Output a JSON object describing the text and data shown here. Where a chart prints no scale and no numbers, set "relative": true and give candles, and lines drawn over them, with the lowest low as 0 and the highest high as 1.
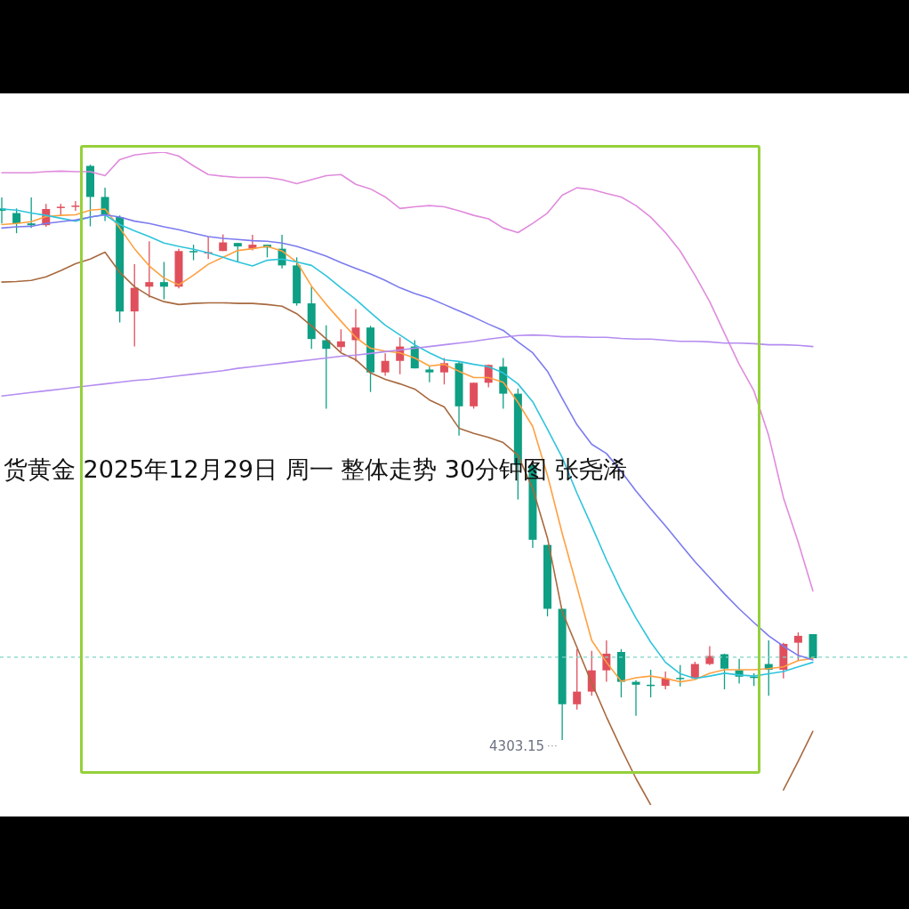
{
  "chart_data": {
    "type": "candlestick",
    "relative": true,
    "title": "货黄金 2025年12月29日 周一 整体走势 30分钟图 张尧浠",
    "categories": [
      null,
      null,
      null,
      null,
      null,
      null,
      null,
      null,
      null,
      null,
      null,
      null,
      null,
      null,
      null,
      null,
      null,
      null,
      null,
      null,
      null,
      null,
      null,
      null,
      null,
      null,
      null,
      null,
      null,
      null,
      null,
      null,
      null,
      null,
      null,
      null,
      null,
      null,
      null,
      null,
      null,
      null,
      null,
      null,
      null,
      null,
      null,
      null,
      null,
      null,
      null,
      null,
      null,
      null,
      null,
      null
    ],
    "ohlc": [
      [
        0.924,
        0.943,
        0.898,
        0.92
      ],
      [
        0.916,
        0.924,
        0.881,
        0.898
      ],
      [
        0.898,
        0.943,
        0.89,
        0.895
      ],
      [
        0.895,
        0.932,
        0.892,
        0.923
      ],
      [
        0.926,
        0.932,
        0.912,
        0.927
      ],
      [
        0.927,
        0.937,
        0.92,
        0.929
      ],
      [
        0.998,
        1,
        0.893,
        0.944
      ],
      [
        0.944,
        0.96,
        0.902,
        0.913
      ],
      [
        0.909,
        0.912,
        0.726,
        0.745
      ],
      [
        0.745,
        0.827,
        0.684,
        0.786
      ],
      [
        0.788,
        0.867,
        0.769,
        0.796
      ],
      [
        0.796,
        0.831,
        0.766,
        0.788
      ],
      [
        0.788,
        0.854,
        0.785,
        0.85
      ],
      [
        0.85,
        0.861,
        0.834,
        0.848
      ],
      [
        0.847,
        0.875,
        0.836,
        0.848
      ],
      [
        0.85,
        0.879,
        0.85,
        0.865
      ],
      [
        0.864,
        0.864,
        0.831,
        0.858
      ],
      [
        0.854,
        0.878,
        0.851,
        0.861
      ],
      [
        0.861,
        0.861,
        0.839,
        0.856
      ],
      [
        0.854,
        0.878,
        0.82,
        0.825
      ],
      [
        0.825,
        0.839,
        0.755,
        0.759
      ],
      [
        0.759,
        0.788,
        0.68,
        0.697
      ],
      [
        0.695,
        0.721,
        0.576,
        0.68
      ],
      [
        0.683,
        0.714,
        0.675,
        0.693
      ],
      [
        0.695,
        0.749,
        0.658,
        0.717
      ],
      [
        0.717,
        0.72,
        0.605,
        0.639
      ],
      [
        0.639,
        0.672,
        0.633,
        0.659
      ],
      [
        0.659,
        0.7,
        0.636,
        0.684
      ],
      [
        0.684,
        0.695,
        0.646,
        0.646
      ],
      [
        0.644,
        0.649,
        0.622,
        0.639
      ],
      [
        0.639,
        0.664,
        0.618,
        0.655
      ],
      [
        0.655,
        0.658,
        0.529,
        0.58
      ],
      [
        0.58,
        0.621,
        0.576,
        0.621
      ],
      [
        0.621,
        0.653,
        0.613,
        0.652
      ],
      [
        0.649,
        0.664,
        0.576,
        0.602
      ],
      [
        0.602,
        0.611,
        0.418,
        0.478
      ],
      [
        0.478,
        0.478,
        0.334,
        0.348
      ],
      [
        0.339,
        0.339,
        0.215,
        0.228
      ],
      [
        0.228,
        0.228,
        0,
        0.062
      ],
      [
        0.062,
        0.158,
        0.053,
        0.084
      ],
      [
        0.084,
        0.155,
        0.077,
        0.121
      ],
      [
        0.121,
        0.173,
        0.101,
        0.15
      ],
      [
        0.153,
        0.158,
        0.074,
        0.101
      ],
      [
        0.101,
        0.104,
        0.042,
        0.096
      ],
      [
        0.096,
        0.122,
        0.074,
        0.094
      ],
      [
        0.094,
        0.119,
        0.088,
        0.107
      ],
      [
        0.108,
        0.13,
        0.093,
        0.107
      ],
      [
        0.107,
        0.136,
        0.107,
        0.132
      ],
      [
        0.132,
        0.163,
        0.13,
        0.146
      ],
      [
        0.149,
        0.15,
        0.088,
        0.124
      ],
      [
        0.121,
        0.141,
        0.098,
        0.11
      ],
      [
        0.11,
        0.116,
        0.094,
        0.108
      ],
      [
        0.132,
        0.173,
        0.077,
        0.122
      ],
      [
        0.122,
        0.169,
        0.107,
        0.167
      ],
      [
        0.169,
        0.187,
        0.138,
        0.181
      ],
      [
        0.184,
        0.184,
        0.142,
        0.142
      ]
    ],
    "colors": [
      "#0e9f84",
      "#0e9f84",
      "#0e9f84",
      "#e0505c",
      "#e0505c",
      "#e0505c",
      "#0e9f84",
      "#0e9f84",
      "#0e9f84",
      "#e0505c",
      "#e0505c",
      "#0e9f84",
      "#e0505c",
      "#0e9f84",
      "#e0505c",
      "#e0505c",
      "#0e9f84",
      "#e0505c",
      "#0e9f84",
      "#0e9f84",
      "#0e9f84",
      "#0e9f84",
      "#0e9f84",
      "#e0505c",
      "#e0505c",
      "#0e9f84",
      "#e0505c",
      "#e0505c",
      "#0e9f84",
      "#0e9f84",
      "#e0505c",
      "#0e9f84",
      "#e0505c",
      "#e0505c",
      "#0e9f84",
      "#0e9f84",
      "#0e9f84",
      "#0e9f84",
      "#0e9f84",
      "#e0505c",
      "#e0505c",
      "#e0505c",
      "#0e9f84",
      "#0e9f84",
      "#0e9f84",
      "#e0505c",
      "#0e9f84",
      "#e0505c",
      "#e0505c",
      "#0e9f84",
      "#0e9f84",
      "#0e9f84",
      "#0e9f84",
      "#e0505c",
      "#e0505c",
      "#0e9f84"
    ],
    "series": [
      {
        "type": "line",
        "color": "#b48cf0",
        "values": [
          0.598,
          0.601,
          0.604,
          0.607,
          0.61,
          0.613,
          0.616,
          0.619,
          0.622,
          0.625,
          0.627,
          0.63,
          0.633,
          0.636,
          0.639,
          0.642,
          0.646,
          0.649,
          0.652,
          0.655,
          0.658,
          0.661,
          0.664,
          0.667,
          0.669,
          0.672,
          0.675,
          0.678,
          0.681,
          0.684,
          0.687,
          0.69,
          0.693,
          0.697,
          0.7,
          0.703,
          0.704,
          0.703,
          0.701,
          0.701,
          0.7,
          0.7,
          0.698,
          0.697,
          0.697,
          0.695,
          0.693,
          0.693,
          0.692,
          0.69,
          0.69,
          0.689,
          0.687,
          0.687,
          0.686,
          0.684
        ]
      },
      {
        "type": "line",
        "color": "#e08bdc",
        "values": [
          0.986,
          0.986,
          0.986,
          0.988,
          0.989,
          0.988,
          0.988,
          0.981,
          1.009,
          1.017,
          1.02,
          1.022,
          1.015,
          0.998,
          0.983,
          0.98,
          0.978,
          0.978,
          0.978,
          0.974,
          0.967,
          0.974,
          0.981,
          0.983,
          0.966,
          0.958,
          0.944,
          0.924,
          0.927,
          0.929,
          0.927,
          0.92,
          0.912,
          0.906,
          0.89,
          0.882,
          0.898,
          0.916,
          0.947,
          0.96,
          0.957,
          0.95,
          0.944,
          0.929,
          0.909,
          0.882,
          0.85,
          0.808,
          0.762,
          0.707,
          0.653,
          0.607,
          0.529,
          0.421,
          0.344,
          0.259
        ]
      },
      {
        "type": "line",
        "color": "#a8693f",
        "values": [
          0.796,
          0.797,
          0.799,
          0.805,
          0.816,
          0.828,
          0.836,
          0.848,
          0.813,
          0.788,
          0.772,
          0.762,
          0.757,
          0.759,
          0.76,
          0.76,
          0.759,
          0.759,
          0.757,
          0.754,
          0.741,
          0.72,
          0.697,
          0.673,
          0.661,
          0.638,
          0.627,
          0.619,
          0.61,
          0.591,
          0.579,
          0.542,
          0.533,
          0.526,
          0.517,
          0.495,
          0.437,
          0.351,
          0.223,
          0.161,
          0.099,
          0.04,
          -0.015,
          -0.067,
          -0.113,
          null,
          null,
          null,
          null,
          null,
          null,
          null,
          null,
          -0.087,
          -0.037,
          0.015
        ]
      },
      {
        "type": "line",
        "color": "#7b7bef",
        "values": [
          0.89,
          0.892,
          0.893,
          0.898,
          0.901,
          0.904,
          0.909,
          0.913,
          0.909,
          0.902,
          0.898,
          0.892,
          0.887,
          0.881,
          0.875,
          0.872,
          0.87,
          0.868,
          0.867,
          0.864,
          0.858,
          0.85,
          0.841,
          0.83,
          0.82,
          0.81,
          0.799,
          0.786,
          0.776,
          0.768,
          0.757,
          0.746,
          0.735,
          0.723,
          0.712,
          0.692,
          0.673,
          0.641,
          0.594,
          0.548,
          0.514,
          0.498,
          0.467,
          0.433,
          0.402,
          0.372,
          0.341,
          0.31,
          0.282,
          0.254,
          0.228,
          0.204,
          0.181,
          0.163,
          0.147,
          0.139
        ]
      },
      {
        "type": "line",
        "color": "#2ec4dc",
        "values": [
          0.923,
          0.921,
          0.916,
          0.912,
          0.907,
          0.902,
          0.909,
          0.913,
          0.896,
          0.885,
          0.875,
          0.864,
          0.858,
          0.853,
          0.847,
          0.839,
          0.831,
          0.824,
          0.834,
          0.836,
          0.831,
          0.825,
          0.807,
          0.786,
          0.766,
          0.743,
          0.721,
          0.704,
          0.687,
          0.673,
          0.661,
          0.658,
          0.653,
          0.649,
          0.638,
          0.619,
          0.588,
          0.54,
          0.491,
          0.429,
          0.372,
          0.313,
          0.259,
          0.212,
          0.17,
          0.135,
          0.115,
          0.107,
          0.111,
          0.116,
          0.113,
          0.111,
          0.115,
          0.119,
          0.127,
          0.135
        ]
      },
      {
        "type": "line",
        "color": "#ffa040",
        "values": [
          0.896,
          0.898,
          0.901,
          0.91,
          0.912,
          0.913,
          0.921,
          0.923,
          0.89,
          0.854,
          0.824,
          0.803,
          0.791,
          0.808,
          0.827,
          0.839,
          0.851,
          0.854,
          0.858,
          0.85,
          0.831,
          0.789,
          0.757,
          0.728,
          0.7,
          0.681,
          0.676,
          0.673,
          0.664,
          0.65,
          0.653,
          0.641,
          0.63,
          0.63,
          0.622,
          0.587,
          0.545,
          0.46,
          0.359,
          0.266,
          0.173,
          0.135,
          0.102,
          0.108,
          0.111,
          0.107,
          0.101,
          0.105,
          0.116,
          0.122,
          0.122,
          0.122,
          0.124,
          0.127,
          0.138,
          0.142
        ]
      }
    ],
    "ref_lines": [
      {
        "axis": "y",
        "value": 0.144,
        "color": "#7fd3c3",
        "line_style": "dashed"
      }
    ],
    "annotations": [
      "4303.15"
    ],
    "marker": "none"
  }
}
